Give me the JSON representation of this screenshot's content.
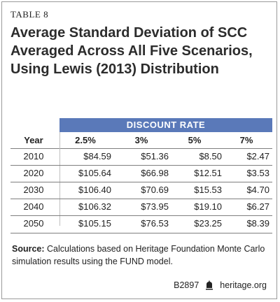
{
  "table_label": "TABLE 8",
  "title_lines": [
    "Average Standard Deviation of SCC",
    "Averaged Across All Five Scenarios,",
    "Using Lewis (2013) Distribution"
  ],
  "band_label": "DISCOUNT RATE",
  "columns": [
    "Year",
    "2.5%",
    "3%",
    "5%",
    "7%"
  ],
  "rows": [
    [
      "2010",
      "$84.59",
      "$51.36",
      "$8.50",
      "$2.47"
    ],
    [
      "2020",
      "$105.64",
      "$66.98",
      "$12.51",
      "$3.53"
    ],
    [
      "2030",
      "$106.40",
      "$70.69",
      "$15.53",
      "$4.70"
    ],
    [
      "2040",
      "$106.32",
      "$73.95",
      "$19.10",
      "$6.27"
    ],
    [
      "2050",
      "$105.15",
      "$76.53",
      "$23.25",
      "$8.39"
    ]
  ],
  "source": {
    "label": "Source:",
    "text": "Calculations based on Heritage Foundation Monte Carlo simulation results using the FUND model."
  },
  "footer": {
    "code": "B2897",
    "site": "heritage.org",
    "icon": "bell-icon"
  },
  "colors": {
    "band": "#5a79b9",
    "band_text": "#ffffff"
  }
}
